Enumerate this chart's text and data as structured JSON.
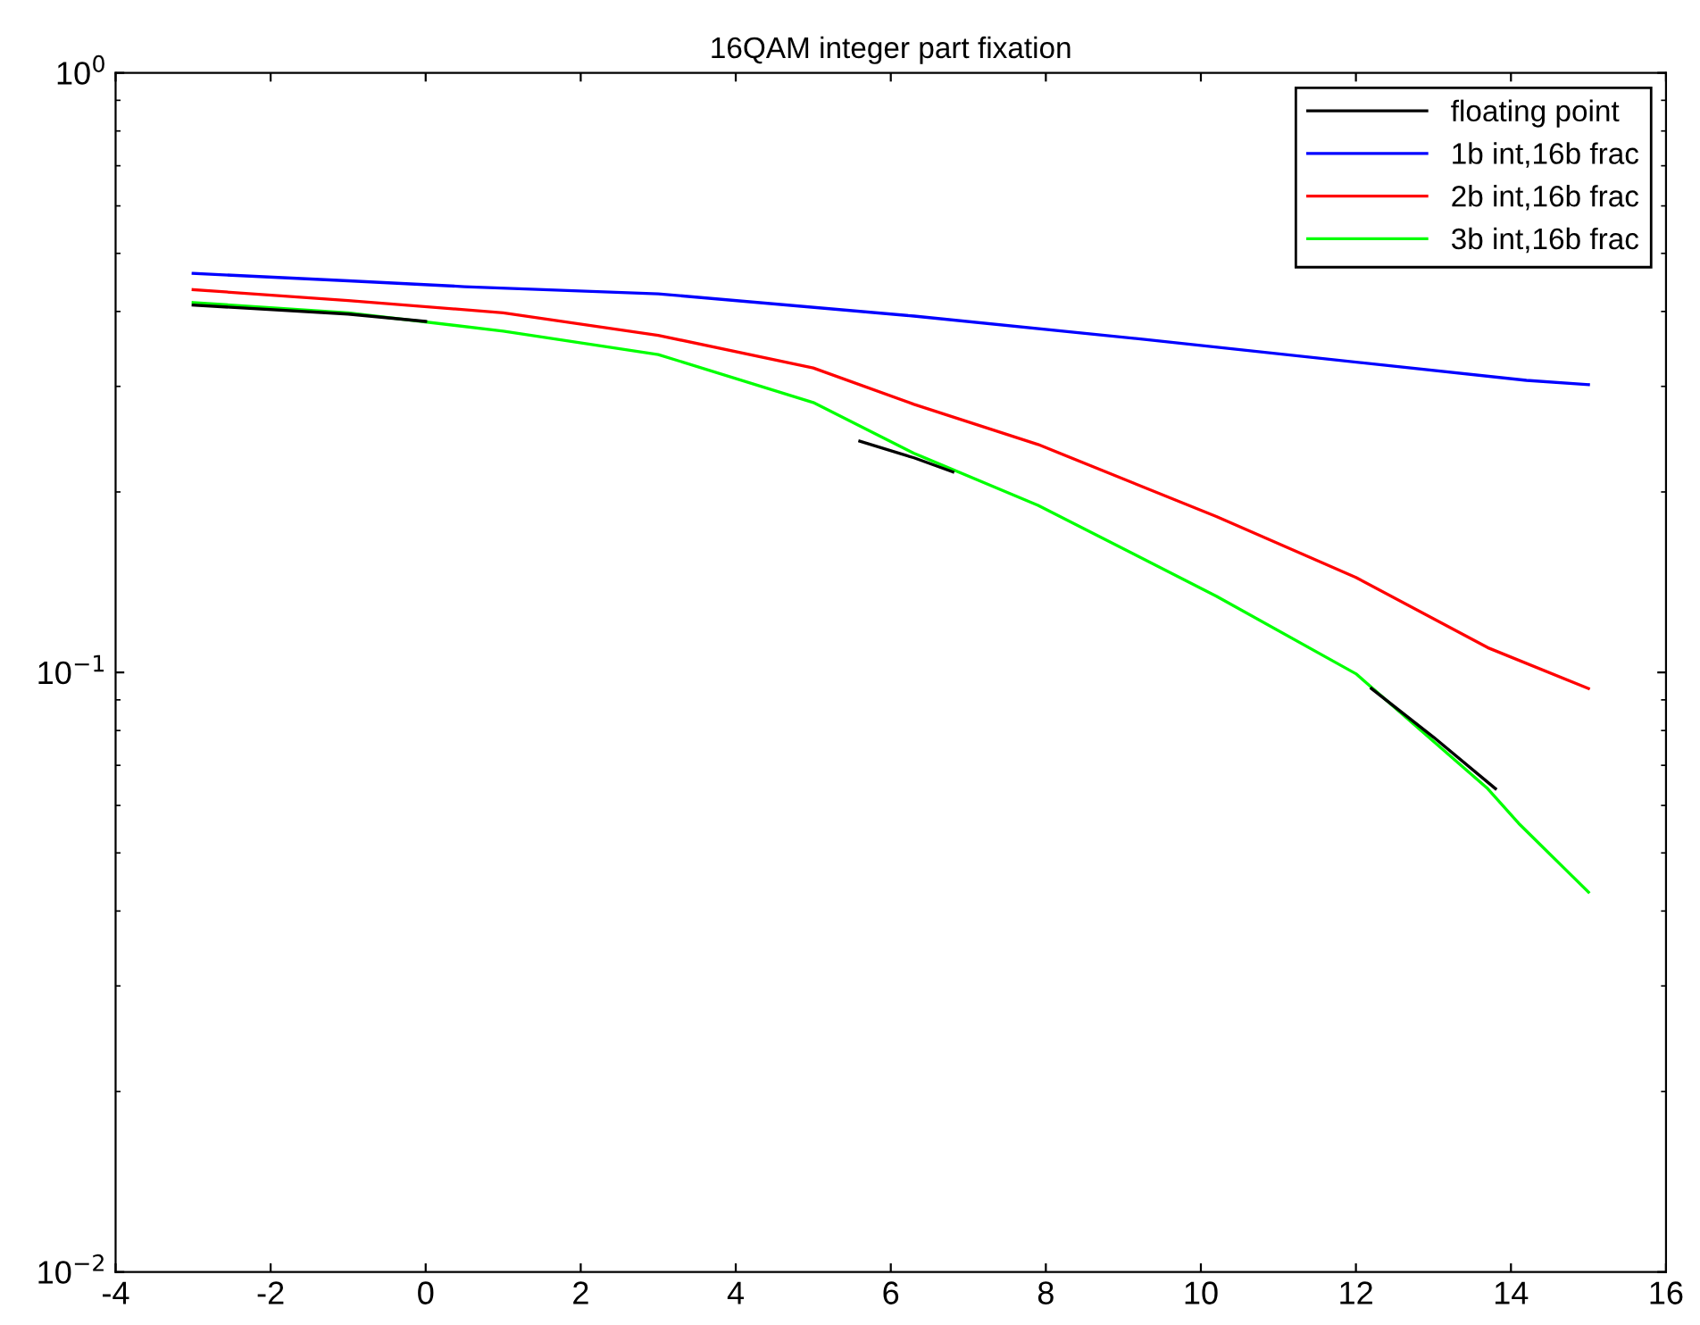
{
  "chart_data": {
    "type": "line",
    "title": "16QAM integer part fixation",
    "log": "y",
    "legend": "top right",
    "grid": false,
    "xlim": [
      -4,
      16
    ],
    "xticks": [
      -4,
      -2,
      0,
      2,
      4,
      6,
      8,
      10,
      12,
      14,
      16
    ],
    "ylim": [
      0.01,
      1
    ],
    "yticks": [
      {
        "value": 0.01,
        "label": "10$^{−2}$"
      },
      {
        "value": 0.1,
        "label": "10$^{−1}$"
      },
      {
        "value": 1,
        "label": "10$^{0}$"
      }
    ],
    "series": [
      {
        "name": "floating point",
        "color": "#000000",
        "x": [
          -3,
          -1,
          0,
          0.1,
          5.6,
          6.3,
          6.8,
          6.9,
          12.2,
          13,
          13.8
        ],
        "values": [
          0.41,
          0.396,
          0.385,
          null,
          0.243,
          0.228,
          0.216,
          null,
          0.094,
          0.078,
          0.064
        ]
      },
      {
        "name": "1b int,16b frac",
        "color": "#0000ff",
        "x": [
          -3,
          -1,
          0.5,
          3,
          6.3,
          9.3,
          14.2,
          15
        ],
        "values": [
          0.463,
          0.45,
          0.44,
          0.428,
          0.393,
          0.359,
          0.307,
          0.302
        ]
      },
      {
        "name": "2b int,16b frac",
        "color": "#ff0000",
        "x": [
          -3,
          -1,
          1,
          3,
          5,
          6.3,
          7.9,
          10.2,
          12,
          13.7,
          15
        ],
        "values": [
          0.435,
          0.417,
          0.398,
          0.365,
          0.322,
          0.28,
          0.24,
          0.182,
          0.144,
          0.11,
          0.094
        ]
      },
      {
        "name": "3b int,16b frac",
        "color": "#00ff00",
        "x": [
          -3,
          -1,
          1,
          3,
          5,
          6.3,
          7.9,
          10.2,
          12,
          13.7,
          14.1,
          15
        ],
        "values": [
          0.414,
          0.398,
          0.371,
          0.339,
          0.282,
          0.232,
          0.19,
          0.134,
          0.0995,
          0.064,
          0.056,
          0.043
        ]
      }
    ]
  }
}
